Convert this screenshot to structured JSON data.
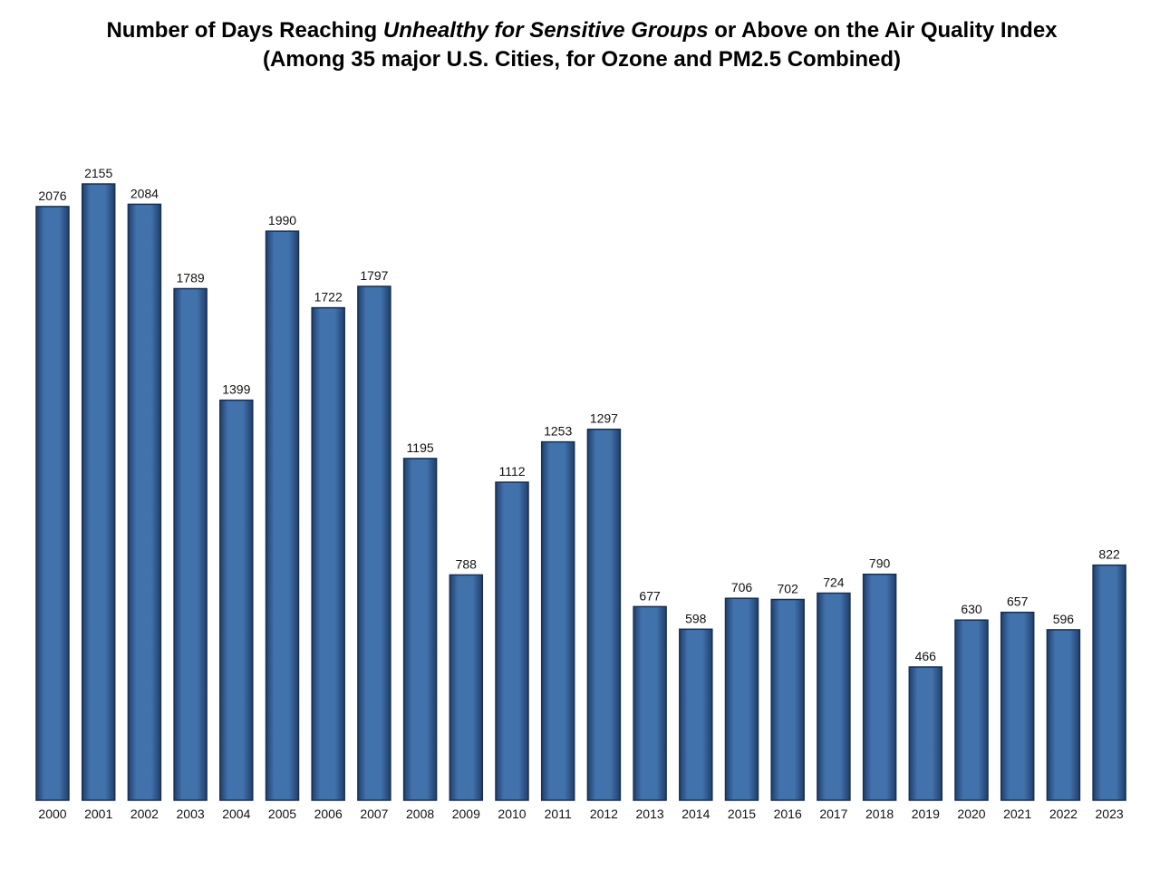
{
  "title": {
    "line1_before": "Number of Days Reaching ",
    "line1_italic": "Unhealthy for Sensitive Groups",
    "line1_after": " or Above on the Air Quality Index",
    "line2": "(Among 35 major U.S. Cities, for Ozone and PM2.5 Combined)"
  },
  "colors": {
    "bar_fill": "#4272ac",
    "bar_edge_dark": "#1f3f6c",
    "bar_outline": "#1a2f4f",
    "text": "#111111"
  },
  "chart_data": {
    "type": "bar",
    "title": "Number of Days Reaching Unhealthy for Sensitive Groups or Above on the Air Quality Index (Among 35 major U.S. Cities, for Ozone and PM2.5 Combined)",
    "xlabel": "",
    "ylabel": "",
    "grid": false,
    "legend": "none",
    "ylim": [
      0,
      2230
    ],
    "categories": [
      "2000",
      "2001",
      "2002",
      "2003",
      "2004",
      "2005",
      "2006",
      "2007",
      "2008",
      "2009",
      "2010",
      "2011",
      "2012",
      "2013",
      "2014",
      "2015",
      "2016",
      "2017",
      "2018",
      "2019",
      "2020",
      "2021",
      "2022",
      "2023"
    ],
    "values": [
      2076,
      2155,
      2084,
      1789,
      1399,
      1990,
      1722,
      1797,
      1195,
      788,
      1112,
      1253,
      1297,
      677,
      598,
      706,
      702,
      724,
      790,
      466,
      630,
      657,
      596,
      822
    ]
  }
}
